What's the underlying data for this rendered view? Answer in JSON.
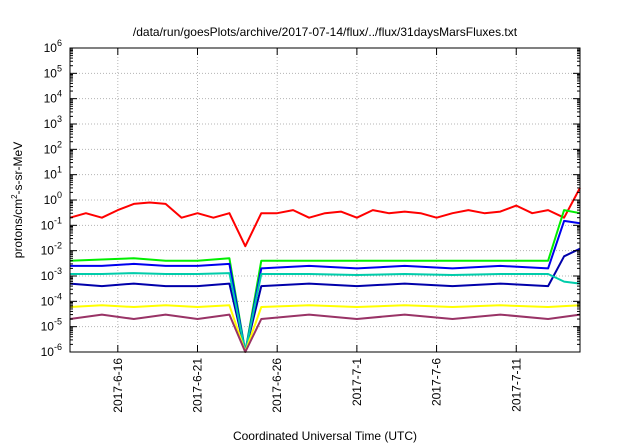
{
  "chart_data": {
    "type": "line",
    "title": "/data/run/goesPlots/archive/2017-07-14/flux/../flux/31daysMarsFluxes.txt",
    "xlabel": "Coordinated Universal Time (UTC)",
    "ylabel": {
      "pre": "protons/cm",
      "sup": "2",
      "post": "-s-sr-MeV"
    },
    "yscale": "log",
    "ylim": [
      1e-06,
      1000000.0
    ],
    "xlim": [
      "2017-06-13",
      "2017-07-15"
    ],
    "grid": true,
    "x_ticks": [
      "2017-6-16",
      "2017-6-21",
      "2017-6-26",
      "2017-7-1",
      "2017-7-6",
      "2017-7-11"
    ],
    "y_ticks": [
      {
        "base": "10",
        "exp": "6"
      },
      {
        "base": "10",
        "exp": "5"
      },
      {
        "base": "10",
        "exp": "4"
      },
      {
        "base": "10",
        "exp": "3"
      },
      {
        "base": "10",
        "exp": "2"
      },
      {
        "base": "10",
        "exp": "1"
      },
      {
        "base": "10",
        "exp": "0"
      },
      {
        "base": "10",
        "exp": "-1"
      },
      {
        "base": "10",
        "exp": "-2"
      },
      {
        "base": "10",
        "exp": "-3"
      },
      {
        "base": "10",
        "exp": "-4"
      },
      {
        "base": "10",
        "exp": "-5"
      },
      {
        "base": "10",
        "exp": "-6"
      }
    ],
    "series": [
      {
        "color": "#ff0000",
        "x": [
          "2017-06-13",
          "2017-06-14",
          "2017-06-15",
          "2017-06-16",
          "2017-06-17",
          "2017-06-18",
          "2017-06-19",
          "2017-06-20",
          "2017-06-21",
          "2017-06-22",
          "2017-06-23",
          "2017-06-24",
          "2017-06-25",
          "2017-06-26",
          "2017-06-27",
          "2017-06-28",
          "2017-06-29",
          "2017-06-30",
          "2017-07-01",
          "2017-07-02",
          "2017-07-03",
          "2017-07-04",
          "2017-07-05",
          "2017-07-06",
          "2017-07-07",
          "2017-07-08",
          "2017-07-09",
          "2017-07-10",
          "2017-07-11",
          "2017-07-12",
          "2017-07-13",
          "2017-07-14",
          "2017-07-15"
        ],
        "y": [
          0.2,
          0.3,
          0.2,
          0.4,
          0.7,
          0.8,
          0.7,
          0.2,
          0.3,
          0.2,
          0.3,
          0.015,
          0.3,
          0.3,
          0.4,
          0.2,
          0.3,
          0.35,
          0.2,
          0.4,
          0.3,
          0.35,
          0.3,
          0.2,
          0.3,
          0.4,
          0.3,
          0.35,
          0.6,
          0.3,
          0.4,
          0.2,
          3
        ]
      },
      {
        "color": "#00ee00",
        "x": [
          "2017-06-13",
          "2017-06-15",
          "2017-06-17",
          "2017-06-19",
          "2017-06-21",
          "2017-06-23",
          "2017-06-24",
          "2017-06-25",
          "2017-06-28",
          "2017-07-01",
          "2017-07-04",
          "2017-07-07",
          "2017-07-10",
          "2017-07-13",
          "2017-07-14",
          "2017-07-15"
        ],
        "y": [
          0.004,
          0.0045,
          0.005,
          0.004,
          0.004,
          0.005,
          1e-06,
          0.004,
          0.004,
          0.004,
          0.004,
          0.004,
          0.004,
          0.004,
          0.4,
          0.3
        ]
      },
      {
        "color": "#0000ee",
        "x": [
          "2017-06-13",
          "2017-06-15",
          "2017-06-17",
          "2017-06-19",
          "2017-06-21",
          "2017-06-23",
          "2017-06-24",
          "2017-06-25",
          "2017-06-28",
          "2017-07-01",
          "2017-07-04",
          "2017-07-07",
          "2017-07-10",
          "2017-07-13",
          "2017-07-14",
          "2017-07-15"
        ],
        "y": [
          0.0025,
          0.0025,
          0.003,
          0.0025,
          0.0025,
          0.003,
          1e-06,
          0.002,
          0.0025,
          0.002,
          0.0025,
          0.002,
          0.0025,
          0.002,
          0.15,
          0.12
        ]
      },
      {
        "color": "#0000aa",
        "x": [
          "2017-06-13",
          "2017-06-15",
          "2017-06-17",
          "2017-06-19",
          "2017-06-21",
          "2017-06-23",
          "2017-06-24",
          "2017-06-25",
          "2017-06-28",
          "2017-07-01",
          "2017-07-04",
          "2017-07-07",
          "2017-07-10",
          "2017-07-13",
          "2017-07-14",
          "2017-07-15"
        ],
        "y": [
          0.0005,
          0.0004,
          0.0005,
          0.0004,
          0.0004,
          0.0005,
          1e-06,
          0.0004,
          0.0005,
          0.0004,
          0.0005,
          0.0004,
          0.0005,
          0.0004,
          0.006,
          0.012
        ]
      },
      {
        "color": "#00ccaa",
        "x": [
          "2017-06-13",
          "2017-06-15",
          "2017-06-17",
          "2017-06-19",
          "2017-06-21",
          "2017-06-23",
          "2017-06-24",
          "2017-06-25",
          "2017-06-28",
          "2017-07-01",
          "2017-07-04",
          "2017-07-07",
          "2017-07-10",
          "2017-07-13",
          "2017-07-14",
          "2017-07-15"
        ],
        "y": [
          0.0012,
          0.0012,
          0.0013,
          0.0012,
          0.0012,
          0.0013,
          1e-06,
          0.0012,
          0.0012,
          0.0011,
          0.0012,
          0.0011,
          0.0012,
          0.0012,
          0.0006,
          0.0005
        ]
      },
      {
        "color": "#ffff00",
        "x": [
          "2017-06-13",
          "2017-06-15",
          "2017-06-17",
          "2017-06-19",
          "2017-06-21",
          "2017-06-23",
          "2017-06-24",
          "2017-06-25",
          "2017-06-28",
          "2017-07-01",
          "2017-07-04",
          "2017-07-07",
          "2017-07-10",
          "2017-07-13",
          "2017-07-15"
        ],
        "y": [
          6e-05,
          7e-05,
          6e-05,
          7e-05,
          6e-05,
          7e-05,
          1e-06,
          6e-05,
          7e-05,
          6e-05,
          7e-05,
          6e-05,
          7e-05,
          6e-05,
          7e-05
        ]
      },
      {
        "color": "#993366",
        "x": [
          "2017-06-13",
          "2017-06-15",
          "2017-06-17",
          "2017-06-19",
          "2017-06-21",
          "2017-06-23",
          "2017-06-24",
          "2017-06-25",
          "2017-06-28",
          "2017-07-01",
          "2017-07-04",
          "2017-07-07",
          "2017-07-10",
          "2017-07-13",
          "2017-07-15"
        ],
        "y": [
          2e-05,
          3e-05,
          2e-05,
          3e-05,
          2e-05,
          3e-05,
          1e-06,
          2e-05,
          3e-05,
          2e-05,
          3e-05,
          2e-05,
          3e-05,
          2e-05,
          3e-05
        ]
      }
    ]
  }
}
